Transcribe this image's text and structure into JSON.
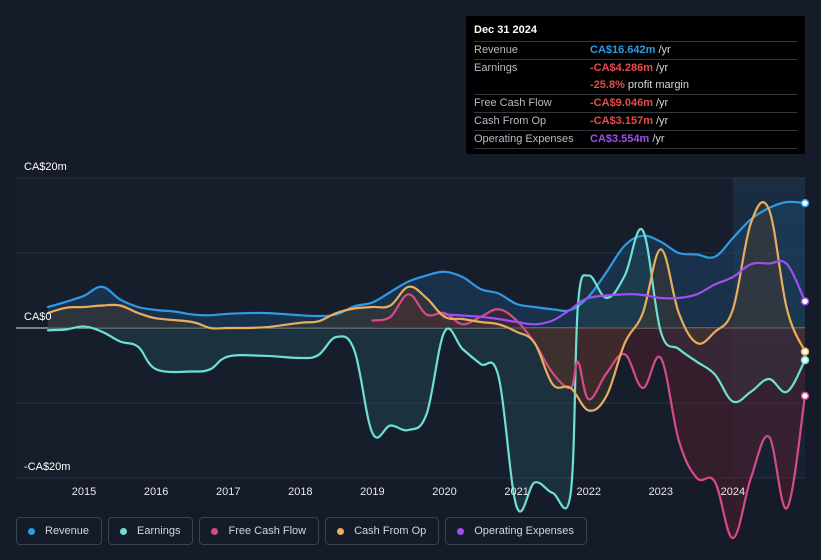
{
  "tooltip": {
    "date": "Dec 31 2024",
    "rows": [
      {
        "label": "Revenue",
        "value": "CA$16.642m",
        "unit": "/yr",
        "color": "#2e9be6"
      },
      {
        "label": "Earnings",
        "value": "-CA$4.286m",
        "unit": "/yr",
        "color": "#e84a4a"
      },
      {
        "label": "",
        "value": "-25.8%",
        "unit": "profit margin",
        "color": "#e84a4a"
      },
      {
        "label": "Free Cash Flow",
        "value": "-CA$9.046m",
        "unit": "/yr",
        "color": "#e84a4a"
      },
      {
        "label": "Cash From Op",
        "value": "-CA$3.157m",
        "unit": "/yr",
        "color": "#e84a4a"
      },
      {
        "label": "Operating Expenses",
        "value": "CA$3.554m",
        "unit": "/yr",
        "color": "#9f4ff0"
      }
    ]
  },
  "legend": [
    {
      "label": "Revenue",
      "color": "#2e9be6"
    },
    {
      "label": "Earnings",
      "color": "#6de0d4"
    },
    {
      "label": "Free Cash Flow",
      "color": "#d64b86"
    },
    {
      "label": "Cash From Op",
      "color": "#e8ae5e"
    },
    {
      "label": "Operating Expenses",
      "color": "#9f4ff0"
    }
  ],
  "chart_data": {
    "type": "line",
    "ylim": [
      -20,
      20
    ],
    "xlim": [
      2014.5,
      2025.0
    ],
    "y_tick_labels": [
      "CA$20m",
      "CA$0",
      "-CA$20m"
    ],
    "x_tick_labels": [
      "2015",
      "2016",
      "2017",
      "2018",
      "2019",
      "2020",
      "2021",
      "2022",
      "2023",
      "2024"
    ],
    "x_ticks": [
      2015,
      2016,
      2017,
      2018,
      2019,
      2020,
      2021,
      2022,
      2023,
      2024
    ],
    "highlight_start": 2024.0,
    "series": [
      {
        "name": "Revenue",
        "color": "#2e9be6",
        "fill": true,
        "x": [
          2014.5,
          2014.75,
          2015.0,
          2015.25,
          2015.5,
          2015.75,
          2016.0,
          2016.25,
          2016.5,
          2016.75,
          2017.0,
          2017.5,
          2018.0,
          2018.25,
          2018.5,
          2018.75,
          2019.0,
          2019.25,
          2019.5,
          2019.75,
          2020.0,
          2020.25,
          2020.5,
          2020.75,
          2021.0,
          2021.25,
          2021.5,
          2021.75,
          2022.0,
          2022.25,
          2022.5,
          2022.75,
          2023.0,
          2023.25,
          2023.5,
          2023.75,
          2024.0,
          2024.25,
          2024.5,
          2024.75,
          2025.0
        ],
        "values": [
          2.8,
          3.5,
          4.3,
          5.5,
          3.8,
          2.8,
          2.4,
          2.2,
          1.8,
          1.7,
          1.9,
          2.0,
          1.7,
          1.6,
          1.8,
          2.9,
          3.4,
          4.8,
          6.2,
          7.0,
          7.5,
          6.8,
          5.2,
          4.6,
          3.2,
          2.8,
          2.5,
          2.4,
          4.2,
          7.5,
          11.0,
          12.3,
          11.5,
          10.0,
          9.8,
          9.5,
          12.0,
          14.5,
          16.0,
          16.8,
          16.642
        ]
      },
      {
        "name": "Earnings",
        "color": "#6de0d4",
        "fill": true,
        "x": [
          2014.5,
          2014.75,
          2015.0,
          2015.25,
          2015.5,
          2015.75,
          2016.0,
          2016.5,
          2016.75,
          2017.0,
          2017.5,
          2018.0,
          2018.25,
          2018.5,
          2018.75,
          2019.0,
          2019.25,
          2019.5,
          2019.75,
          2020.0,
          2020.25,
          2020.5,
          2020.75,
          2021.0,
          2021.25,
          2021.5,
          2021.75,
          2021.85,
          2022.0,
          2022.25,
          2022.5,
          2022.75,
          2023.0,
          2023.25,
          2023.5,
          2023.75,
          2024.0,
          2024.25,
          2024.5,
          2024.75,
          2025.0
        ],
        "values": [
          -0.3,
          -0.2,
          0.2,
          -0.5,
          -1.8,
          -2.5,
          -5.5,
          -5.8,
          -5.5,
          -3.8,
          -3.7,
          -4.0,
          -3.6,
          -1.2,
          -3.0,
          -14.0,
          -13.0,
          -13.6,
          -11.5,
          -0.5,
          -2.8,
          -4.8,
          -6.5,
          -23.8,
          -20.6,
          -22.0,
          -22.0,
          3.0,
          7.0,
          4.0,
          7.0,
          13.0,
          -0.5,
          -2.8,
          -4.5,
          -6.2,
          -9.8,
          -8.5,
          -6.8,
          -8.5,
          -4.286
        ]
      },
      {
        "name": "Free Cash Flow",
        "color": "#d64b86",
        "fill": true,
        "x": [
          2019.0,
          2019.25,
          2019.5,
          2019.75,
          2020.0,
          2020.25,
          2020.5,
          2020.75,
          2021.0,
          2021.25,
          2021.5,
          2021.75,
          2021.85,
          2022.0,
          2022.25,
          2022.5,
          2022.75,
          2023.0,
          2023.25,
          2023.5,
          2023.75,
          2024.0,
          2024.25,
          2024.5,
          2024.75,
          2025.0
        ],
        "values": [
          1.0,
          1.5,
          4.5,
          1.8,
          2.0,
          0.5,
          1.5,
          2.5,
          1.0,
          -2.0,
          -6.0,
          -8.0,
          -4.5,
          -9.5,
          -6.0,
          -3.5,
          -8.0,
          -4.0,
          -15.0,
          -20.0,
          -20.5,
          -28.0,
          -20.0,
          -14.5,
          -24.0,
          -9.046
        ]
      },
      {
        "name": "Cash From Op",
        "color": "#e8ae5e",
        "fill": true,
        "x": [
          2014.5,
          2014.75,
          2015.0,
          2015.25,
          2015.5,
          2015.75,
          2016.0,
          2016.5,
          2016.75,
          2017.0,
          2017.5,
          2018.0,
          2018.25,
          2018.5,
          2018.75,
          2019.0,
          2019.25,
          2019.5,
          2019.75,
          2020.0,
          2020.25,
          2020.5,
          2020.75,
          2021.0,
          2021.25,
          2021.5,
          2021.75,
          2022.0,
          2022.25,
          2022.5,
          2022.75,
          2023.0,
          2023.25,
          2023.5,
          2023.75,
          2024.0,
          2024.25,
          2024.5,
          2024.75,
          2025.0
        ],
        "values": [
          2.0,
          2.7,
          2.8,
          3.0,
          3.0,
          2.0,
          1.3,
          0.8,
          0.0,
          0.0,
          0.1,
          0.7,
          0.9,
          2.0,
          2.6,
          2.8,
          3.0,
          5.5,
          4.0,
          1.5,
          1.2,
          0.8,
          0.5,
          -0.5,
          -2.0,
          -7.5,
          -8.0,
          -11.0,
          -9.0,
          -2.0,
          2.0,
          10.5,
          2.0,
          -2.0,
          -0.5,
          2.5,
          14.0,
          15.8,
          2.5,
          -3.157
        ]
      },
      {
        "name": "Operating Expenses",
        "color": "#9f4ff0",
        "fill": false,
        "x": [
          2020.0,
          2020.5,
          2020.75,
          2021.0,
          2021.25,
          2021.5,
          2021.75,
          2022.0,
          2022.5,
          2022.75,
          2023.0,
          2023.25,
          2023.5,
          2023.75,
          2024.0,
          2024.25,
          2024.5,
          2024.75,
          2025.0
        ],
        "values": [
          1.8,
          1.5,
          1.2,
          0.8,
          0.5,
          1.0,
          2.5,
          4.0,
          4.5,
          4.4,
          4.0,
          4.0,
          4.5,
          5.8,
          6.8,
          8.5,
          8.6,
          8.5,
          3.554
        ]
      }
    ]
  }
}
